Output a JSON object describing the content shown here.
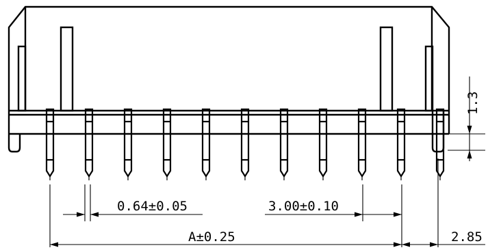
{
  "drawing": {
    "type": "connector-pin-header-side-view",
    "pin_count": 11,
    "colors": {
      "line": "#000000",
      "background": "#ffffff"
    }
  },
  "dimensions": {
    "pin_width": "0.64±0.05",
    "pitch": "3.00±0.10",
    "overall": "A±0.25",
    "end_offset": "2.85",
    "pin_height": "1.3"
  }
}
